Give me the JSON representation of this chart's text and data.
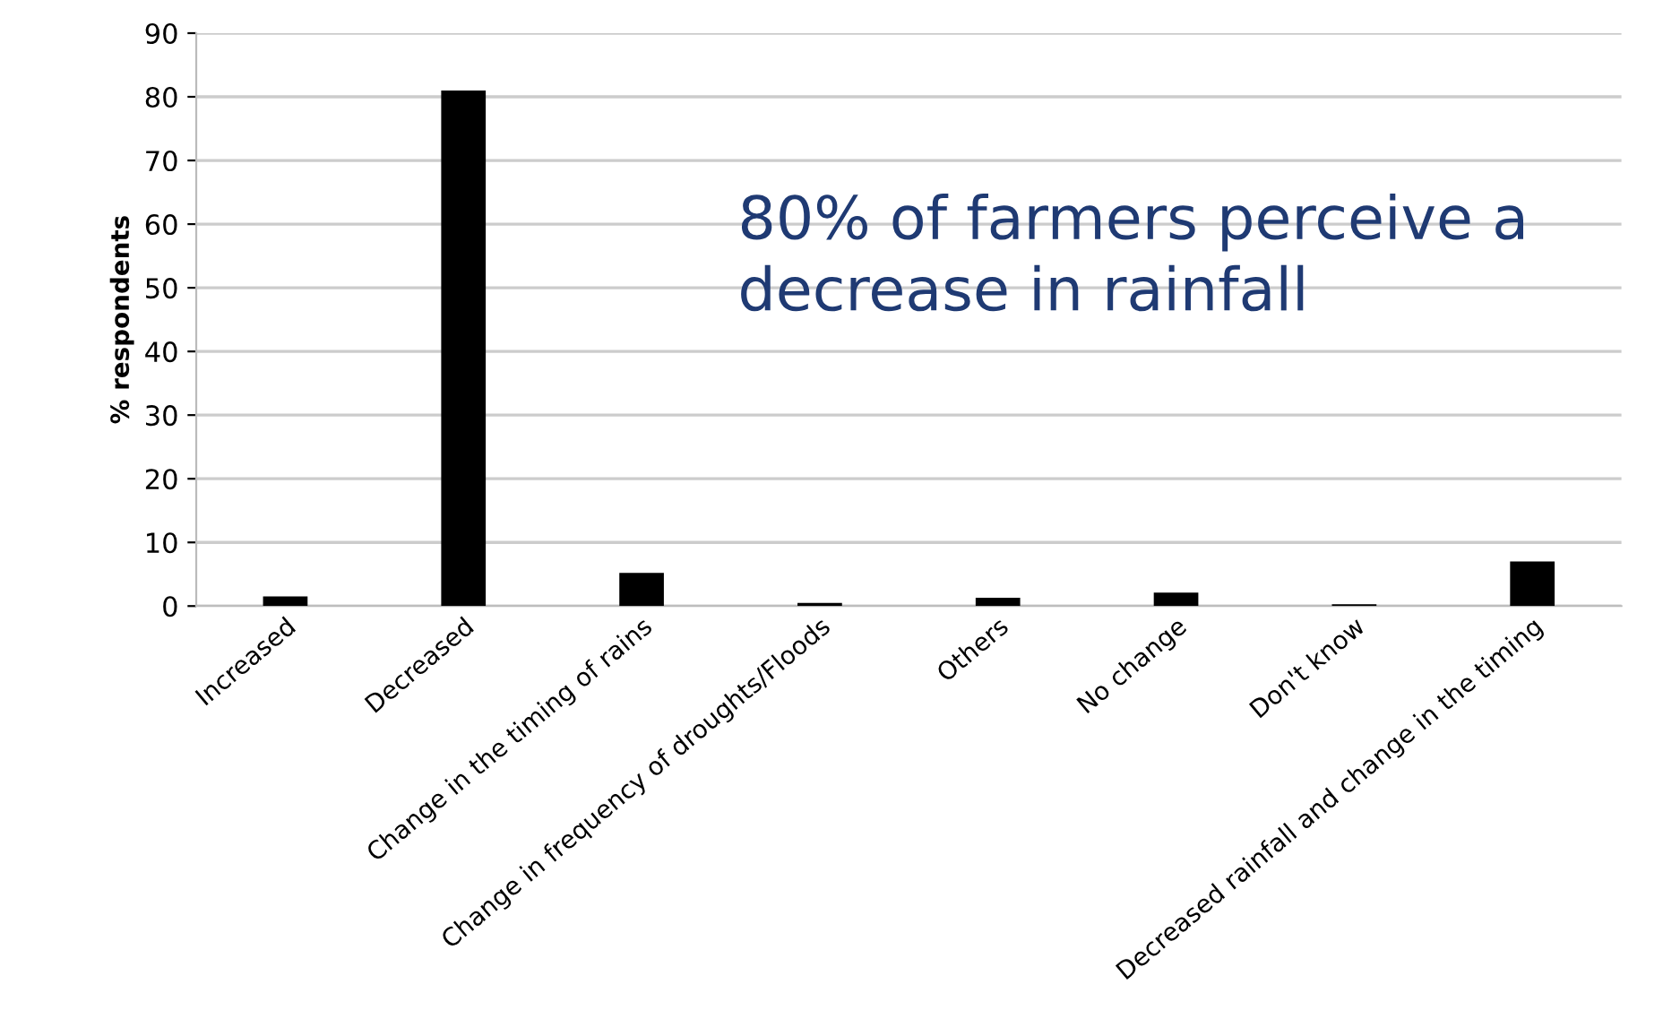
{
  "chart_data": {
    "type": "bar",
    "categories": [
      "Increased",
      "Decreased",
      "Change in the timing of rains",
      "Change in frequency of droughts/Floods",
      "Others",
      "No change",
      "Don't know",
      "Decreased rainfall and change in the timing"
    ],
    "values": [
      1.5,
      81,
      5.2,
      0.5,
      1.3,
      2.1,
      0.3,
      7.0
    ],
    "color": "#000000",
    "ylabel": "% respondents",
    "ylim": [
      0,
      90
    ],
    "yticks": [
      0,
      10,
      20,
      30,
      40,
      50,
      60,
      70,
      80,
      90
    ],
    "grid": "y",
    "annotations": [
      "80% of farmers perceive a decrease in rainfall"
    ]
  }
}
